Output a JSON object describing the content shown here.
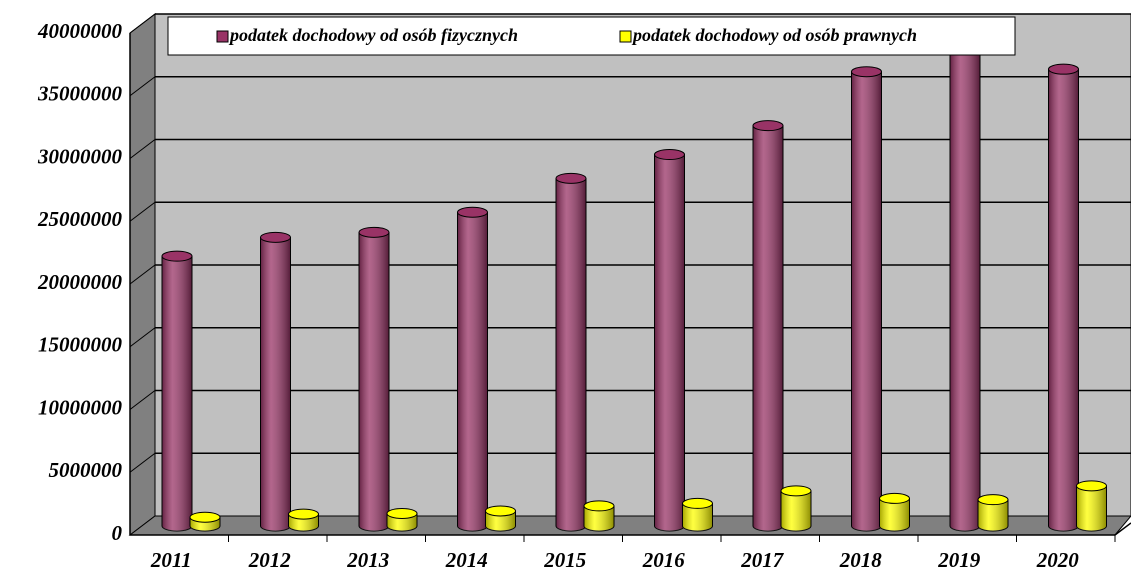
{
  "chart_data": {
    "type": "bar3d",
    "categories": [
      "2011",
      "2012",
      "2013",
      "2014",
      "2015",
      "2016",
      "2017",
      "2018",
      "2019",
      "2020"
    ],
    "series": [
      {
        "name": "podatek dochodowy od osób fizycznych",
        "color": "#993366",
        "values": [
          21500000,
          23000000,
          23400000,
          25000000,
          27700000,
          29600000,
          31900000,
          36200000,
          38600000,
          36400000
        ]
      },
      {
        "name": "podatek dochodowy od osób prawnych",
        "color": "#ffff00",
        "values": [
          700000,
          950000,
          1000000,
          1200000,
          1600000,
          1800000,
          2800000,
          2200000,
          2100000,
          3200000
        ]
      }
    ],
    "ylim": [
      0,
      40000000
    ],
    "yticks": [
      0,
      5000000,
      10000000,
      15000000,
      20000000,
      25000000,
      30000000,
      35000000,
      40000000
    ],
    "grid": true,
    "legend": "top"
  }
}
